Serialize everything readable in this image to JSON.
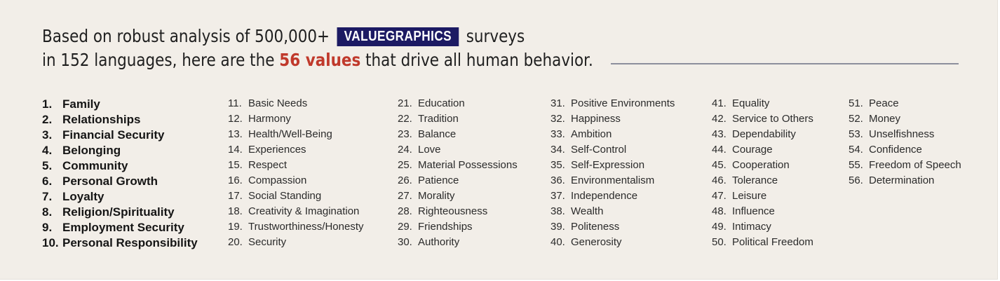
{
  "header": {
    "line1_pre": "Based on robust analysis of 500,000+",
    "brand": "VALUEGRAPHICS",
    "line1_post": "surveys",
    "line2_pre": "in 152 languages, here are the",
    "highlight": "56 values",
    "line2_post": "that drive all human behavior.",
    "accent_color": "#c0392b",
    "brand_color": "#1c1a63"
  },
  "values": [
    {
      "num": "1.",
      "label": "Family"
    },
    {
      "num": "2.",
      "label": "Relationships"
    },
    {
      "num": "3.",
      "label": "Financial Security"
    },
    {
      "num": "4.",
      "label": "Belonging"
    },
    {
      "num": "5.",
      "label": "Community"
    },
    {
      "num": "6.",
      "label": "Personal Growth"
    },
    {
      "num": "7.",
      "label": "Loyalty"
    },
    {
      "num": "8.",
      "label": "Religion/Spirituality"
    },
    {
      "num": "9.",
      "label": "Employment Security"
    },
    {
      "num": "10.",
      "label": "Personal Responsibility"
    },
    {
      "num": "11.",
      "label": "Basic Needs"
    },
    {
      "num": "12.",
      "label": "Harmony"
    },
    {
      "num": "13.",
      "label": "Health/Well-Being"
    },
    {
      "num": "14.",
      "label": "Experiences"
    },
    {
      "num": "15.",
      "label": "Respect"
    },
    {
      "num": "16.",
      "label": "Compassion"
    },
    {
      "num": "17.",
      "label": "Social Standing"
    },
    {
      "num": "18.",
      "label": "Creativity & Imagination"
    },
    {
      "num": "19.",
      "label": "Trustworthiness/Honesty"
    },
    {
      "num": "20.",
      "label": "Security"
    },
    {
      "num": "21.",
      "label": "Education"
    },
    {
      "num": "22.",
      "label": "Tradition"
    },
    {
      "num": "23.",
      "label": "Balance"
    },
    {
      "num": "24.",
      "label": "Love"
    },
    {
      "num": "25.",
      "label": "Material Possessions"
    },
    {
      "num": "26.",
      "label": "Patience"
    },
    {
      "num": "27.",
      "label": "Morality"
    },
    {
      "num": "28.",
      "label": "Righteousness"
    },
    {
      "num": "29.",
      "label": "Friendships"
    },
    {
      "num": "30.",
      "label": "Authority"
    },
    {
      "num": "31.",
      "label": "Positive Environments"
    },
    {
      "num": "32.",
      "label": "Happiness"
    },
    {
      "num": "33.",
      "label": "Ambition"
    },
    {
      "num": "34.",
      "label": "Self-Control"
    },
    {
      "num": "35.",
      "label": "Self-Expression"
    },
    {
      "num": "36.",
      "label": "Environmentalism"
    },
    {
      "num": "37.",
      "label": "Independence"
    },
    {
      "num": "38.",
      "label": "Wealth"
    },
    {
      "num": "39.",
      "label": "Politeness"
    },
    {
      "num": "40.",
      "label": "Generosity"
    },
    {
      "num": "41.",
      "label": "Equality"
    },
    {
      "num": "42.",
      "label": "Service to Others"
    },
    {
      "num": "43.",
      "label": "Dependability"
    },
    {
      "num": "44.",
      "label": "Courage"
    },
    {
      "num": "45.",
      "label": "Cooperation"
    },
    {
      "num": "46.",
      "label": "Tolerance"
    },
    {
      "num": "47.",
      "label": "Leisure"
    },
    {
      "num": "48.",
      "label": "Influence"
    },
    {
      "num": "49.",
      "label": "Intimacy"
    },
    {
      "num": "50.",
      "label": "Political Freedom"
    },
    {
      "num": "51.",
      "label": "Peace"
    },
    {
      "num": "52.",
      "label": "Money"
    },
    {
      "num": "53.",
      "label": "Unselfishness"
    },
    {
      "num": "54.",
      "label": "Confidence"
    },
    {
      "num": "55.",
      "label": "Freedom of Speech"
    },
    {
      "num": "56.",
      "label": "Determination"
    }
  ]
}
